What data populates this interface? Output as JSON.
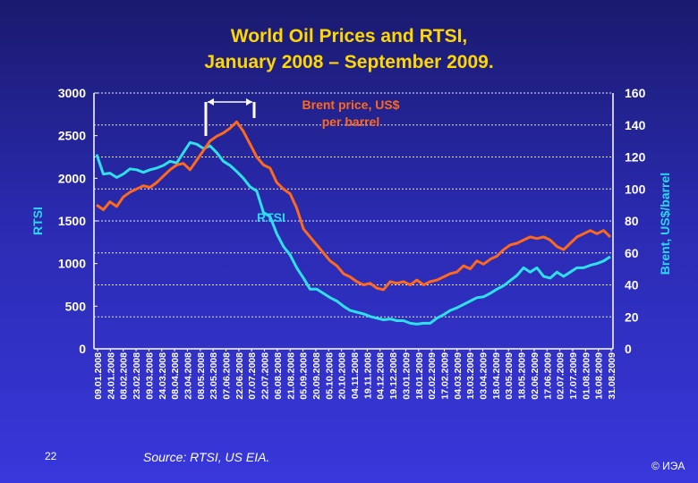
{
  "title_line1": "World Oil Prices and RTSI,",
  "title_line2": "January 2008 – September 2009.",
  "slide_number": "22",
  "source": "Source: RTSI, US EIA.",
  "copyright": "© ИЭА",
  "colors": {
    "title": "#ffd700",
    "axis_label_blue": "#2ad8f0",
    "rtsi_line": "#30e0e8",
    "brent_line": "#ff6a1a",
    "brent_label": "#ff6a1a"
  },
  "chart_data": {
    "type": "line",
    "title": "World Oil Prices and RTSI, January 2008 – September 2009.",
    "left_axis": {
      "label": "RTSI",
      "ylim": [
        0,
        3000
      ],
      "ticks": [
        "0",
        "500",
        "1000",
        "1500",
        "2000",
        "2500",
        "3000"
      ]
    },
    "right_axis": {
      "label": "Brent, US$/barrel",
      "ylim": [
        0,
        160
      ],
      "ticks": [
        "0",
        "20",
        "40",
        "60",
        "80",
        "100",
        "120",
        "140",
        "160"
      ]
    },
    "x_tick_labels": [
      "09.01.2008",
      "24.01.2008",
      "08.02.2008",
      "23.02.2008",
      "09.03.2008",
      "24.03.2008",
      "08.04.2008",
      "23.04.2008",
      "08.05.2008",
      "23.05.2008",
      "07.06.2008",
      "22.06.2008",
      "07.07.2008",
      "22.07.2008",
      "06.08.2008",
      "21.08.2008",
      "05.09.2008",
      "20.09.2008",
      "05.10.2008",
      "20.10.2008",
      "04.11.2008",
      "19.11.2008",
      "04.12.2008",
      "19.12.2008",
      "03.01.2009",
      "18.01.2009",
      "02.02.2009",
      "17.02.2009",
      "04.03.2009",
      "19.03.2009",
      "03.04.2009",
      "18.04.2009",
      "03.05.2009",
      "18.05.2009",
      "02.06.2009",
      "17.06.2009",
      "02.07.2009",
      "17.07.2009",
      "01.08.2009",
      "16.08.2009",
      "31.08.2009"
    ],
    "annotations": [
      {
        "text": "Brent price, US$",
        "series": "Brent"
      },
      {
        "text": "per barrel",
        "series": "Brent"
      },
      {
        "text": "RTSI",
        "series": "RTSI"
      }
    ],
    "series": [
      {
        "name": "RTSI",
        "axis": "left",
        "values": [
          2280,
          2050,
          2060,
          2010,
          2050,
          2110,
          2100,
          2070,
          2100,
          2120,
          2150,
          2200,
          2180,
          2300,
          2420,
          2400,
          2350,
          2380,
          2300,
          2200,
          2150,
          2080,
          2000,
          1900,
          1850,
          1600,
          1550,
          1350,
          1200,
          1100,
          950,
          830,
          700,
          700,
          650,
          600,
          560,
          500,
          450,
          430,
          410,
          380,
          360,
          340,
          350,
          330,
          330,
          300,
          290,
          300,
          300,
          360,
          400,
          450,
          480,
          520,
          560,
          600,
          610,
          650,
          700,
          740,
          800,
          860,
          950,
          900,
          950,
          850,
          830,
          900,
          850,
          900,
          950,
          950,
          980,
          1000,
          1030,
          1080
        ]
      },
      {
        "name": "Brent",
        "axis": "right",
        "values": [
          90,
          87,
          92,
          89,
          95,
          98,
          100,
          102,
          101,
          104,
          108,
          112,
          115,
          116,
          112,
          118,
          124,
          130,
          133,
          135,
          138,
          142,
          136,
          128,
          120,
          115,
          113,
          104,
          100,
          97,
          88,
          75,
          70,
          65,
          60,
          55,
          52,
          47,
          45,
          42,
          40,
          41,
          38,
          37,
          42,
          41,
          42,
          40,
          43,
          40,
          42,
          43,
          45,
          47,
          48,
          52,
          50,
          55,
          53,
          56,
          58,
          62,
          65,
          66,
          68,
          70,
          69,
          70,
          68,
          64,
          62,
          66,
          70,
          72,
          74,
          72,
          74,
          70
        ]
      }
    ]
  }
}
